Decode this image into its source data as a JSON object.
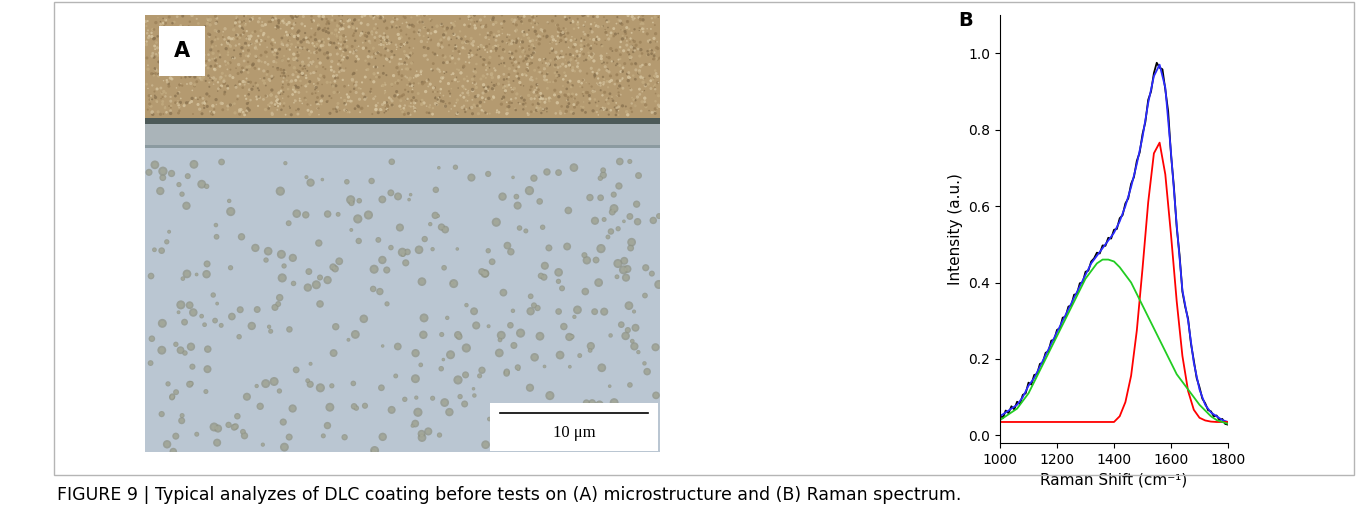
{
  "caption": "FIGURE 9 | Typical analyzes of DLC coating before tests on (A) microstructure and (B) Raman spectrum.",
  "micrograph": {
    "panel_label": "A",
    "scale_bar": "10 μm"
  },
  "chart_data": {
    "type": "line",
    "panel_label": "B",
    "x_label": "Raman Shift (cm⁻¹)",
    "y_label": "Intensity (a.u.)",
    "xlim": [
      1000,
      1800
    ],
    "ylim": [
      -0.02,
      1.1
    ],
    "xticks": [
      1000,
      1200,
      1400,
      1600,
      1800
    ],
    "yticks": [
      {
        "value": 0.0,
        "label": "0.0"
      },
      {
        "value": 0.2,
        "label": "0.2"
      },
      {
        "value": 0.4,
        "label": "0.4"
      },
      {
        "value": 0.6,
        "label": "0.6"
      },
      {
        "value": 0.8,
        "label": "0.8"
      },
      {
        "value": 1.0,
        "label": "1.0"
      }
    ],
    "series": [
      {
        "color": "#000000",
        "x": [
          1000,
          1010,
          1020,
          1030,
          1040,
          1050,
          1060,
          1070,
          1080,
          1090,
          1100,
          1110,
          1120,
          1130,
          1140,
          1150,
          1160,
          1170,
          1180,
          1190,
          1200,
          1210,
          1220,
          1230,
          1240,
          1250,
          1260,
          1270,
          1280,
          1290,
          1300,
          1310,
          1320,
          1330,
          1340,
          1350,
          1360,
          1370,
          1380,
          1390,
          1400,
          1410,
          1420,
          1430,
          1440,
          1450,
          1460,
          1470,
          1480,
          1490,
          1500,
          1510,
          1520,
          1530,
          1540,
          1550,
          1560,
          1570,
          1580,
          1590,
          1600,
          1610,
          1620,
          1630,
          1640,
          1650,
          1660,
          1670,
          1680,
          1690,
          1700,
          1710,
          1720,
          1730,
          1740,
          1750,
          1760,
          1770,
          1780,
          1790,
          1800
        ],
        "values": [
          0.055,
          0.045,
          0.065,
          0.058,
          0.076,
          0.068,
          0.088,
          0.082,
          0.106,
          0.11,
          0.138,
          0.133,
          0.158,
          0.16,
          0.187,
          0.19,
          0.216,
          0.22,
          0.248,
          0.25,
          0.276,
          0.28,
          0.308,
          0.31,
          0.337,
          0.34,
          0.368,
          0.37,
          0.398,
          0.4,
          0.428,
          0.431,
          0.455,
          0.463,
          0.478,
          0.476,
          0.497,
          0.496,
          0.517,
          0.515,
          0.538,
          0.54,
          0.568,
          0.576,
          0.607,
          0.62,
          0.658,
          0.676,
          0.718,
          0.74,
          0.788,
          0.82,
          0.878,
          0.9,
          0.948,
          0.975,
          0.962,
          0.958,
          0.905,
          0.848,
          0.735,
          0.652,
          0.545,
          0.472,
          0.376,
          0.336,
          0.305,
          0.24,
          0.196,
          0.15,
          0.126,
          0.096,
          0.084,
          0.066,
          0.063,
          0.05,
          0.052,
          0.04,
          0.043,
          0.03,
          0.028
        ]
      },
      {
        "color": "#2b2bff",
        "x": [
          1000,
          1020,
          1040,
          1060,
          1080,
          1100,
          1120,
          1140,
          1160,
          1180,
          1200,
          1220,
          1240,
          1260,
          1280,
          1300,
          1320,
          1340,
          1360,
          1380,
          1400,
          1420,
          1440,
          1460,
          1480,
          1500,
          1520,
          1540,
          1560,
          1580,
          1600,
          1620,
          1640,
          1660,
          1680,
          1700,
          1720,
          1740,
          1760,
          1780,
          1800
        ],
        "values": [
          0.05,
          0.06,
          0.07,
          0.08,
          0.1,
          0.13,
          0.15,
          0.18,
          0.21,
          0.24,
          0.27,
          0.3,
          0.33,
          0.36,
          0.39,
          0.42,
          0.45,
          0.47,
          0.49,
          0.51,
          0.53,
          0.56,
          0.6,
          0.65,
          0.71,
          0.78,
          0.87,
          0.94,
          0.97,
          0.91,
          0.74,
          0.55,
          0.38,
          0.3,
          0.19,
          0.12,
          0.08,
          0.06,
          0.05,
          0.04,
          0.035
        ]
      },
      {
        "color": "#ff0000",
        "x": [
          1000,
          1020,
          1040,
          1060,
          1080,
          1100,
          1120,
          1140,
          1160,
          1180,
          1200,
          1220,
          1240,
          1260,
          1280,
          1300,
          1320,
          1340,
          1360,
          1380,
          1400,
          1420,
          1440,
          1460,
          1480,
          1500,
          1520,
          1540,
          1560,
          1580,
          1600,
          1620,
          1640,
          1660,
          1680,
          1700,
          1720,
          1740,
          1760,
          1780,
          1800
        ],
        "values": [
          0.035,
          0.035,
          0.035,
          0.035,
          0.035,
          0.035,
          0.035,
          0.035,
          0.035,
          0.035,
          0.035,
          0.035,
          0.035,
          0.035,
          0.035,
          0.035,
          0.035,
          0.035,
          0.035,
          0.035,
          0.035,
          0.05,
          0.087,
          0.156,
          0.274,
          0.436,
          0.61,
          0.738,
          0.766,
          0.683,
          0.525,
          0.351,
          0.208,
          0.116,
          0.067,
          0.046,
          0.039,
          0.036,
          0.035,
          0.035,
          0.035
        ]
      },
      {
        "color": "#22cc22",
        "x": [
          1000,
          1020,
          1040,
          1060,
          1080,
          1100,
          1120,
          1140,
          1160,
          1180,
          1200,
          1220,
          1240,
          1260,
          1280,
          1300,
          1320,
          1340,
          1360,
          1380,
          1400,
          1420,
          1440,
          1460,
          1480,
          1500,
          1520,
          1540,
          1560,
          1580,
          1600,
          1620,
          1640,
          1660,
          1680,
          1700,
          1720,
          1740,
          1760,
          1780,
          1800
        ],
        "values": [
          0.04,
          0.05,
          0.06,
          0.07,
          0.09,
          0.11,
          0.14,
          0.17,
          0.2,
          0.23,
          0.26,
          0.29,
          0.32,
          0.35,
          0.38,
          0.41,
          0.43,
          0.45,
          0.46,
          0.46,
          0.455,
          0.44,
          0.42,
          0.4,
          0.37,
          0.34,
          0.31,
          0.28,
          0.25,
          0.22,
          0.19,
          0.16,
          0.14,
          0.12,
          0.1,
          0.08,
          0.065,
          0.05,
          0.04,
          0.035,
          0.03
        ]
      }
    ]
  }
}
